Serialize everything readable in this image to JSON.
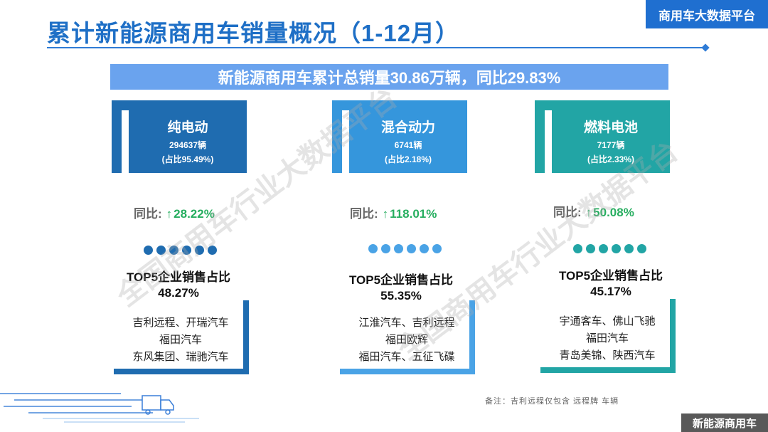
{
  "header": {
    "title": "累计新能源商用车销量概况（1-12月）",
    "platform_tag": "商用车大数据平台"
  },
  "summary": {
    "text": "新能源商用车累计总销量30.86万辆，同比29.83%"
  },
  "categories": [
    {
      "name": "纯电动",
      "count": "294637辆",
      "share": "(占比95.49%)",
      "yoy_label": "同比:",
      "yoy_arrow": "↑",
      "yoy_value": "28.22%",
      "top5_label": "TOP5企业销售占比",
      "top5_value": "48.27%",
      "companies": [
        "吉利远程、开瑞汽车",
        "福田汽车",
        "东风集团、瑞驰汽车"
      ]
    },
    {
      "name": "混合动力",
      "count": "6741辆",
      "share": "(占比2.18%)",
      "yoy_label": "同比:",
      "yoy_arrow": "↑",
      "yoy_value": "118.01%",
      "top5_label": "TOP5企业销售占比",
      "top5_value": "55.35%",
      "companies": [
        "江淮汽车、吉利远程",
        "福田欧辉",
        "福田汽车、五征飞碟"
      ]
    },
    {
      "name": "燃料电池",
      "count": "7177辆",
      "share": "(占比2.33%)",
      "yoy_label": "同比:",
      "yoy_arrow": "↑",
      "yoy_value": "50.08%",
      "top5_label": "TOP5企业销售占比",
      "top5_value": "45.17%",
      "companies": [
        "宇通客车、佛山飞驰",
        "福田汽车",
        "青岛美锦、陕西汽车"
      ]
    }
  ],
  "colors": {
    "title": "#1e6fc6",
    "summary_bar": "#6aa3ee",
    "bev": "#1f6cb0",
    "hybrid": "#3596dc",
    "fuel_cell": "#22a5a5",
    "growth": "#27ae60"
  },
  "note": "备注：吉利远程仅包含  远程牌  车辆",
  "footer_tag": "新能源商用车",
  "watermark": "全国商用车行业大数据平台"
}
